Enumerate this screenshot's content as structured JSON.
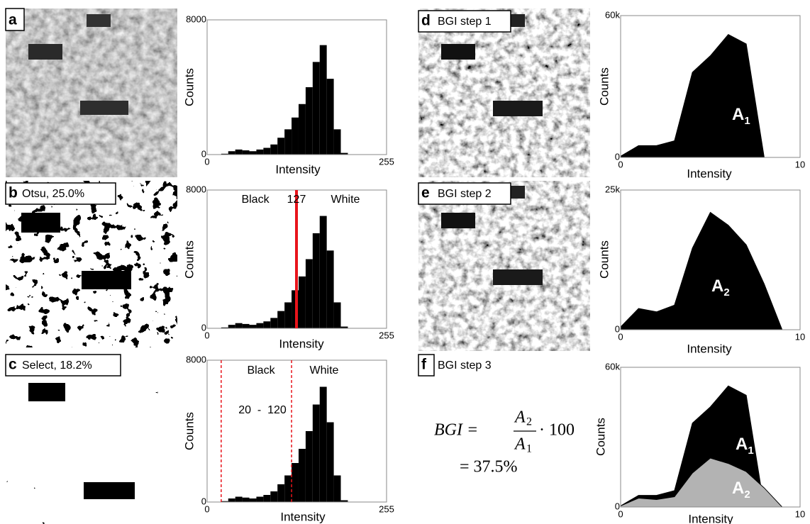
{
  "panels": [
    {
      "letter": "a"
    },
    {
      "letter": "b",
      "caption": "Otsu, 25.0%"
    },
    {
      "letter": "c",
      "caption": "Select, 18.2%"
    },
    {
      "letter": "d",
      "caption": "BGI step 1"
    },
    {
      "letter": "e",
      "caption": "BGI step 2"
    },
    {
      "letter": "f",
      "caption": "BGI step 3"
    }
  ],
  "formula": {
    "lhs": "BGI =",
    "numerator": "A",
    "numerator_sub": "2",
    "denominator": "A",
    "denominator_sub": "1",
    "factor": "· 100",
    "result": "= 37.5%"
  },
  "chart_data": [
    {
      "type": "histogram",
      "xlabel": "Intensity",
      "ylabel": "Counts",
      "color": "#000000",
      "bins": [
        0,
        10,
        20,
        30,
        40,
        50,
        60,
        70,
        80,
        90,
        100,
        110,
        120,
        130,
        140,
        150,
        160,
        170,
        180,
        190,
        200,
        210,
        220,
        230,
        240,
        250,
        255
      ],
      "values": [
        0,
        0,
        50,
        200,
        300,
        250,
        200,
        300,
        400,
        600,
        1000,
        1500,
        2200,
        3000,
        4000,
        5500,
        6500,
        4500,
        1500,
        100,
        0,
        0,
        0,
        0,
        0,
        0
      ],
      "xlim": [
        0,
        255
      ],
      "ylim": [
        0,
        8000
      ],
      "xticks": [
        0,
        255
      ],
      "yticks": [
        0,
        8000
      ]
    },
    {
      "type": "histogram",
      "xlabel": "Intensity",
      "ylabel": "Counts",
      "color": "#000000",
      "bins": [
        0,
        10,
        20,
        30,
        40,
        50,
        60,
        70,
        80,
        90,
        100,
        110,
        120,
        130,
        140,
        150,
        160,
        170,
        180,
        190,
        200,
        210,
        220,
        230,
        240,
        250,
        255
      ],
      "values": [
        0,
        0,
        50,
        200,
        300,
        250,
        200,
        300,
        400,
        600,
        1000,
        1500,
        2200,
        3000,
        4000,
        5500,
        6500,
        4500,
        1500,
        100,
        0,
        0,
        0,
        0,
        0,
        0
      ],
      "xlim": [
        0,
        255
      ],
      "ylim": [
        0,
        8000
      ],
      "xticks": [
        0,
        255
      ],
      "yticks": [
        0,
        8000
      ],
      "threshold": 127,
      "threshold_color": "#e8141b",
      "region_labels": [
        "Black",
        "White"
      ]
    },
    {
      "type": "histogram",
      "xlabel": "Intensity",
      "ylabel": "Counts",
      "color": "#000000",
      "bins": [
        0,
        10,
        20,
        30,
        40,
        50,
        60,
        70,
        80,
        90,
        100,
        110,
        120,
        130,
        140,
        150,
        160,
        170,
        180,
        190,
        200,
        210,
        220,
        230,
        240,
        250,
        255
      ],
      "values": [
        0,
        0,
        50,
        200,
        300,
        250,
        200,
        300,
        400,
        600,
        1000,
        1500,
        2200,
        3000,
        4000,
        5500,
        6500,
        4500,
        1500,
        100,
        0,
        0,
        0,
        0,
        0,
        0
      ],
      "xlim": [
        0,
        255
      ],
      "ylim": [
        0,
        8000
      ],
      "xticks": [
        0,
        255
      ],
      "yticks": [
        0,
        8000
      ],
      "range": [
        20,
        120
      ],
      "range_color": "#e8141b",
      "range_label": "20  -  120",
      "region_labels": [
        "Black",
        "White"
      ]
    },
    {
      "type": "area",
      "xlabel": "Intensity",
      "ylabel": "Counts",
      "x": [
        0,
        1,
        2,
        3,
        4,
        5,
        6,
        7,
        8
      ],
      "series": [
        {
          "name": "A",
          "name_sub": "1",
          "color": "#000000",
          "values": [
            500,
            5000,
            5000,
            7000,
            36000,
            43000,
            52000,
            48000,
            0
          ]
        }
      ],
      "xlim": [
        0,
        10
      ],
      "ylim": [
        0,
        60000
      ],
      "xticks": [
        0,
        10
      ],
      "yticks": [
        0,
        {
          "value": 60000,
          "label": "60k"
        }
      ]
    },
    {
      "type": "area",
      "xlabel": "Intensity",
      "ylabel": "Counts",
      "x": [
        0,
        1,
        2,
        3,
        4,
        5,
        6,
        7,
        8,
        9
      ],
      "series": [
        {
          "name": "A",
          "name_sub": "2",
          "color": "#000000",
          "values": [
            500,
            3800,
            3200,
            4400,
            14600,
            21000,
            18700,
            15200,
            8200,
            0
          ]
        }
      ],
      "xlim": [
        0,
        10
      ],
      "ylim": [
        0,
        25000
      ],
      "xticks": [
        0,
        10
      ],
      "yticks": [
        0,
        {
          "value": 25000,
          "label": "25k"
        }
      ]
    },
    {
      "type": "area",
      "xlabel": "Intensity",
      "ylabel": "Counts",
      "x": [
        0,
        1,
        2,
        3,
        4,
        5,
        6,
        7,
        8,
        9
      ],
      "series": [
        {
          "name": "A",
          "name_sub": "1",
          "color": "#000000",
          "values": [
            500,
            5000,
            5000,
            7000,
            36000,
            43000,
            52000,
            48000,
            0,
            null
          ]
        },
        {
          "name": "A",
          "name_sub": "2",
          "color": "#b3b3b3",
          "values": [
            500,
            3800,
            3200,
            4400,
            14600,
            21000,
            18700,
            15200,
            8200,
            0
          ]
        }
      ],
      "xlim": [
        0,
        10
      ],
      "ylim": [
        0,
        60000
      ],
      "xticks": [
        0,
        10
      ],
      "yticks": [
        0,
        {
          "value": 60000,
          "label": "60k"
        }
      ]
    }
  ]
}
